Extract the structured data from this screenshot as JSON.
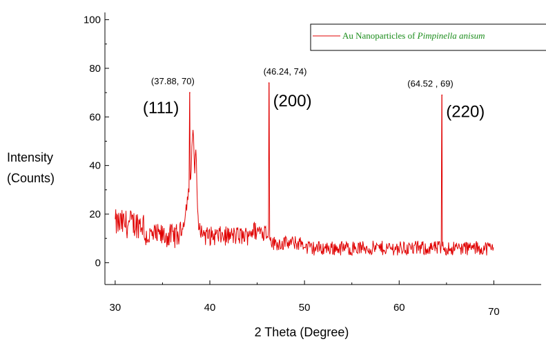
{
  "chart_data": {
    "type": "line",
    "xlabel": "2 Theta (Degree)",
    "ylabel": [
      "Intensity",
      "(Counts)"
    ],
    "xlim": [
      29.5,
      75
    ],
    "ylim": [
      -7,
      103
    ],
    "x_ticks": [
      30,
      40,
      50,
      60,
      70
    ],
    "y_ticks": [
      0,
      20,
      40,
      60,
      80,
      100
    ],
    "x_tick_labels": [
      "30",
      "40",
      "50",
      "60",
      "70"
    ],
    "y_tick_labels": [
      "0",
      "20",
      "40",
      "60",
      "80",
      "100"
    ],
    "grid": false,
    "legend": {
      "placement": "top-right",
      "text": "Au Nanoparticles of ",
      "text_italic": "Pimpinella anisum"
    },
    "series": [
      {
        "name": "Au Nanoparticles of Pimpinella anisum",
        "color": "#e00000",
        "x_range": [
          30,
          70
        ],
        "noise_regions": [
          {
            "x": [
              30,
              33
            ],
            "baseline": 16,
            "amplitude": 6
          },
          {
            "x": [
              33,
              37
            ],
            "baseline": 11,
            "amplitude": 5
          },
          {
            "x": [
              39.5,
              44
            ],
            "baseline": 11,
            "amplitude": 4
          },
          {
            "x": [
              44,
              46
            ],
            "baseline": 13,
            "amplitude": 4
          },
          {
            "x": [
              46.5,
              50
            ],
            "baseline": 8,
            "amplitude": 3
          },
          {
            "x": [
              50,
              70
            ],
            "baseline": 6,
            "amplitude": 3
          }
        ],
        "peaks": [
          {
            "x": 37.88,
            "y": 70
          },
          {
            "x": 46.24,
            "y": 74
          },
          {
            "x": 64.52,
            "y": 69
          }
        ],
        "broad_features": [
          {
            "x": 38.2,
            "y": 55,
            "width": 0.6
          },
          {
            "x": 38.5,
            "y": 45,
            "width": 0.5
          }
        ]
      }
    ],
    "annotations": [
      {
        "text": "(37.88, 70)",
        "kind": "coordinate",
        "x": 37.88,
        "y": 70
      },
      {
        "text": "(46.24, 74)",
        "kind": "coordinate",
        "x": 46.24,
        "y": 74
      },
      {
        "text": "(64.52 , 69)",
        "kind": "coordinate",
        "x": 64.52,
        "y": 69
      },
      {
        "text": "(111)",
        "kind": "hkl",
        "x": 37.88,
        "y": 70
      },
      {
        "text": "(200)",
        "kind": "hkl",
        "x": 46.24,
        "y": 74
      },
      {
        "text": "(220)",
        "kind": "hkl",
        "x": 64.52,
        "y": 69
      }
    ]
  }
}
